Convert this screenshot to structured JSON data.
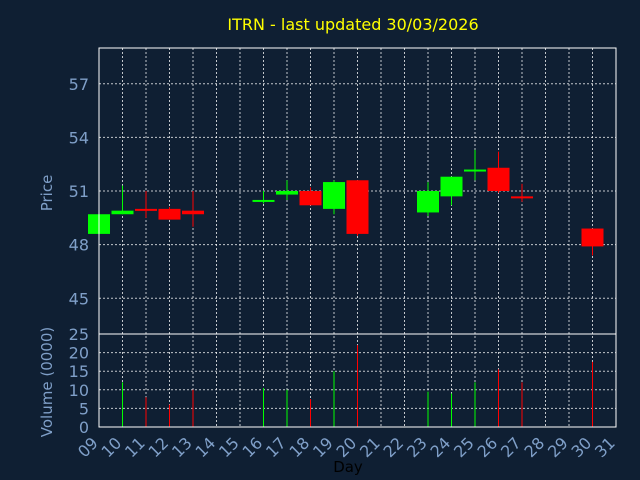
{
  "chart_data": {
    "type": "candlestick",
    "title": "ITRN - last updated 30/03/2026",
    "xlabel": "Day",
    "colors": {
      "background": "#0f1f33",
      "up": "#00ff00",
      "down": "#ff0000",
      "axis": "#ffffff",
      "grid": "#ffffff",
      "tick_text": "#7f9fc8",
      "title": "#ffff00"
    },
    "x_ticks": [
      "09",
      "10",
      "11",
      "12",
      "13",
      "14",
      "15",
      "16",
      "17",
      "18",
      "19",
      "20",
      "21",
      "22",
      "23",
      "24",
      "25",
      "26",
      "27",
      "28",
      "29",
      "30",
      "31"
    ],
    "price": {
      "ylabel": "Price",
      "ylim": [
        43,
        59
      ],
      "yticks": [
        45,
        48,
        51,
        54,
        57
      ],
      "grid": true
    },
    "volume": {
      "ylabel": "Volume (0000)",
      "ylim": [
        0,
        25
      ],
      "yticks": [
        0,
        5,
        10,
        15,
        20,
        25
      ],
      "grid": true
    },
    "candles": [
      {
        "day": "09",
        "open": 48.6,
        "high": 49.7,
        "low": 48.6,
        "close": 49.7,
        "volume": 13.0
      },
      {
        "day": "10",
        "open": 49.7,
        "high": 51.3,
        "low": 49.7,
        "close": 49.9,
        "volume": 12.0
      },
      {
        "day": "11",
        "open": 50.0,
        "high": 51.0,
        "low": 49.5,
        "close": 49.9,
        "volume": 8.0
      },
      {
        "day": "12",
        "open": 50.0,
        "high": 50.1,
        "low": 49.4,
        "close": 49.4,
        "volume": 6.0
      },
      {
        "day": "13",
        "open": 49.9,
        "high": 51.0,
        "low": 49.0,
        "close": 49.7,
        "volume": 10.0
      },
      {
        "day": "16",
        "open": 50.4,
        "high": 51.0,
        "low": 50.3,
        "close": 50.5,
        "volume": 10.5
      },
      {
        "day": "17",
        "open": 50.8,
        "high": 51.6,
        "low": 50.5,
        "close": 51.0,
        "volume": 10.0
      },
      {
        "day": "18",
        "open": 51.0,
        "high": 51.2,
        "low": 50.2,
        "close": 50.2,
        "volume": 7.5
      },
      {
        "day": "19",
        "open": 50.0,
        "high": 51.6,
        "low": 49.7,
        "close": 51.5,
        "volume": 15.0
      },
      {
        "day": "20",
        "open": 51.6,
        "high": 51.6,
        "low": 48.5,
        "close": 48.6,
        "volume": 22.0
      },
      {
        "day": "23",
        "open": 49.8,
        "high": 51.5,
        "low": 49.6,
        "close": 51.0,
        "volume": 9.5
      },
      {
        "day": "24",
        "open": 50.7,
        "high": 51.8,
        "low": 50.2,
        "close": 51.8,
        "volume": 9.0
      },
      {
        "day": "25",
        "open": 52.1,
        "high": 53.3,
        "low": 51.6,
        "close": 52.2,
        "volume": 12.0
      },
      {
        "day": "26",
        "open": 52.3,
        "high": 53.2,
        "low": 50.9,
        "close": 51.0,
        "volume": 15.5
      },
      {
        "day": "27",
        "open": 50.7,
        "high": 51.4,
        "low": 50.4,
        "close": 50.6,
        "volume": 12.0
      },
      {
        "day": "30",
        "open": 48.9,
        "high": 48.9,
        "low": 47.4,
        "close": 47.9,
        "volume": 17.5
      }
    ]
  }
}
